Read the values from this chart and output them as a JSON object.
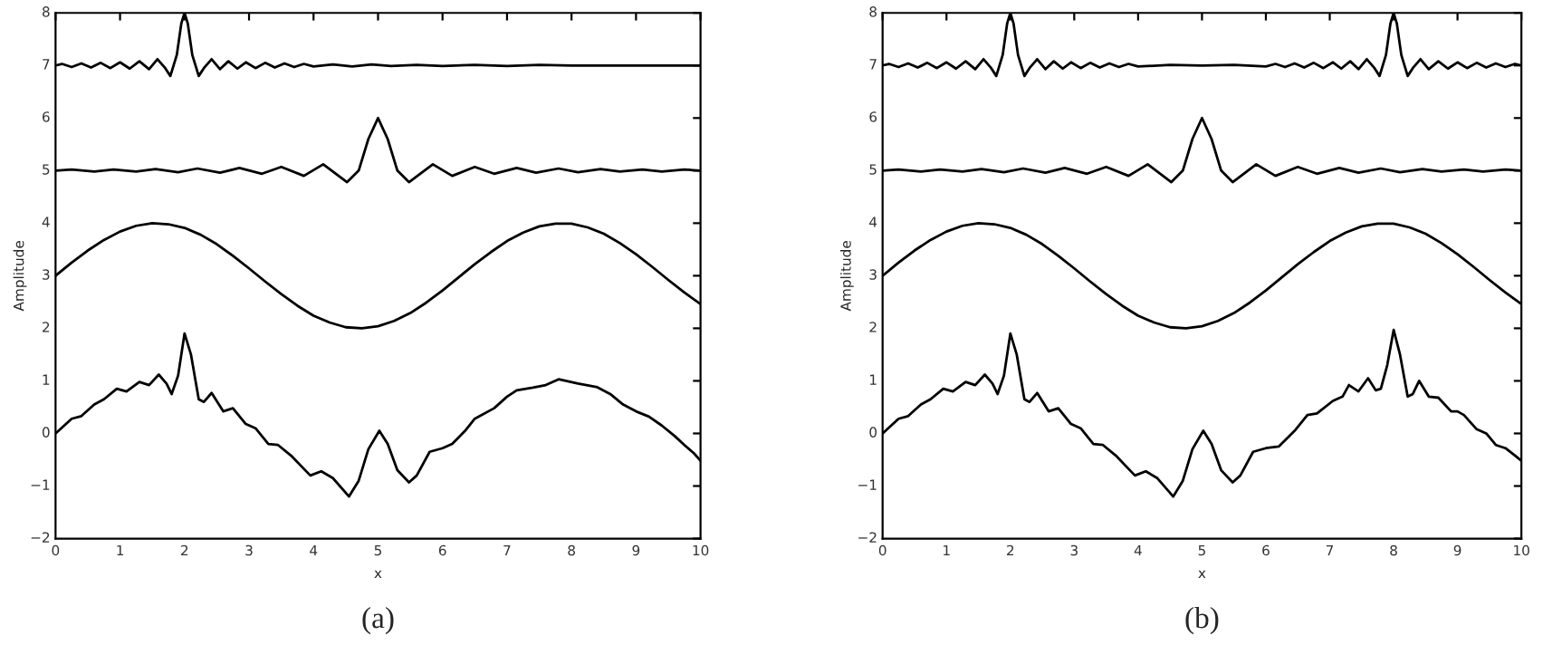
{
  "chart_data": [
    {
      "type": "line",
      "xlabel": "x",
      "ylabel": "Amplitude",
      "annotations": [
        "(a)"
      ],
      "xlim": [
        0,
        10
      ],
      "ylim": [
        -2,
        8
      ],
      "xticks": [
        0,
        1,
        2,
        3,
        4,
        5,
        6,
        7,
        8,
        9,
        10
      ],
      "yticks": [
        -2,
        -1,
        0,
        1,
        2,
        3,
        4,
        5,
        6,
        7,
        8
      ],
      "grid": false,
      "legend": false,
      "series": [
        {
          "color": "#000000",
          "x": [
            0,
            0.1,
            0.25,
            0.4,
            0.55,
            0.7,
            0.85,
            1.0,
            1.15,
            1.3,
            1.45,
            1.58,
            1.7,
            1.78,
            1.88,
            1.95,
            2.0,
            2.05,
            2.12,
            2.22,
            2.3,
            2.42,
            2.55,
            2.68,
            2.82,
            2.95,
            3.1,
            3.25,
            3.4,
            3.55,
            3.7,
            3.85,
            4.0,
            4.3,
            4.6,
            4.9,
            5.2,
            5.6,
            6.0,
            6.5,
            7.0,
            7.5,
            8.0,
            8.5,
            9.0,
            9.5,
            10
          ],
          "values": [
            7.0,
            7.03,
            6.97,
            7.04,
            6.96,
            7.05,
            6.95,
            7.06,
            6.94,
            7.08,
            6.93,
            7.12,
            6.95,
            6.8,
            7.2,
            7.8,
            8.0,
            7.8,
            7.2,
            6.8,
            6.95,
            7.12,
            6.93,
            7.08,
            6.94,
            7.06,
            6.95,
            7.05,
            6.96,
            7.04,
            6.97,
            7.03,
            6.98,
            7.02,
            6.98,
            7.02,
            6.99,
            7.01,
            6.99,
            7.01,
            6.99,
            7.01,
            7.0,
            7.0,
            7.0,
            7.0,
            7.0
          ]
        },
        {
          "color": "#000000",
          "x": [
            0,
            0.25,
            0.6,
            0.9,
            1.25,
            1.55,
            1.9,
            2.2,
            2.55,
            2.85,
            3.2,
            3.5,
            3.85,
            4.15,
            4.52,
            4.7,
            4.85,
            5.0,
            5.15,
            5.3,
            5.48,
            5.85,
            6.15,
            6.5,
            6.8,
            7.15,
            7.45,
            7.8,
            8.1,
            8.45,
            8.75,
            9.1,
            9.4,
            9.75,
            10
          ],
          "values": [
            5.0,
            5.02,
            4.98,
            5.02,
            4.98,
            5.03,
            4.97,
            5.04,
            4.96,
            5.05,
            4.94,
            5.07,
            4.9,
            5.12,
            4.78,
            5.0,
            5.6,
            6.0,
            5.6,
            5.0,
            4.78,
            5.12,
            4.9,
            5.07,
            4.94,
            5.05,
            4.96,
            5.04,
            4.97,
            5.03,
            4.98,
            5.02,
            4.98,
            5.02,
            5.0
          ]
        },
        {
          "color": "#000000",
          "x": [
            0,
            0.25,
            0.5,
            0.75,
            1,
            1.25,
            1.5,
            1.75,
            2,
            2.25,
            2.5,
            2.75,
            3,
            3.25,
            3.5,
            3.75,
            4,
            4.25,
            4.5,
            4.75,
            5,
            5.25,
            5.5,
            5.75,
            6,
            6.25,
            6.5,
            6.75,
            7,
            7.25,
            7.5,
            7.75,
            8,
            8.25,
            8.5,
            8.75,
            9,
            9.25,
            9.5,
            9.75,
            10
          ],
          "values": [
            3.0,
            3.25,
            3.48,
            3.68,
            3.84,
            3.95,
            4.0,
            3.98,
            3.91,
            3.78,
            3.6,
            3.38,
            3.14,
            2.89,
            2.65,
            2.43,
            2.24,
            2.11,
            2.02,
            2.0,
            2.04,
            2.14,
            2.29,
            2.49,
            2.72,
            2.97,
            3.22,
            3.45,
            3.66,
            3.82,
            3.94,
            3.99,
            3.99,
            3.92,
            3.8,
            3.62,
            3.41,
            3.17,
            2.92,
            2.68,
            2.46
          ]
        },
        {
          "color": "#000000",
          "x": [
            0,
            0.25,
            0.4,
            0.6,
            0.75,
            0.95,
            1.1,
            1.3,
            1.45,
            1.6,
            1.72,
            1.8,
            1.9,
            2.0,
            2.1,
            2.22,
            2.3,
            2.42,
            2.6,
            2.75,
            2.95,
            3.1,
            3.3,
            3.45,
            3.65,
            3.95,
            4.12,
            4.3,
            4.55,
            4.7,
            4.85,
            5.02,
            5.15,
            5.3,
            5.48,
            5.6,
            5.8,
            6.0,
            6.15,
            6.35,
            6.5,
            6.8,
            7.0,
            7.15,
            7.4,
            7.6,
            7.8,
            8.1,
            8.4,
            8.6,
            8.8,
            9.0,
            9.2,
            9.4,
            9.6,
            9.75,
            9.9,
            10
          ],
          "values": [
            0,
            0.28,
            0.33,
            0.55,
            0.65,
            0.85,
            0.8,
            0.98,
            0.92,
            1.12,
            0.95,
            0.75,
            1.1,
            1.9,
            1.5,
            0.65,
            0.6,
            0.77,
            0.42,
            0.48,
            0.18,
            0.1,
            -0.2,
            -0.22,
            -0.42,
            -0.8,
            -0.72,
            -0.85,
            -1.2,
            -0.9,
            -0.3,
            0.05,
            -0.2,
            -0.7,
            -0.93,
            -0.8,
            -0.35,
            -0.28,
            -0.2,
            0.05,
            0.28,
            0.48,
            0.7,
            0.82,
            0.87,
            0.92,
            1.03,
            0.95,
            0.88,
            0.75,
            0.55,
            0.42,
            0.32,
            0.15,
            -0.05,
            -0.22,
            -0.38,
            -0.52
          ]
        }
      ]
    },
    {
      "type": "line",
      "xlabel": "x",
      "ylabel": "Amplitude",
      "annotations": [
        "(b)"
      ],
      "xlim": [
        0,
        10
      ],
      "ylim": [
        -2,
        8
      ],
      "xticks": [
        0,
        1,
        2,
        3,
        4,
        5,
        6,
        7,
        8,
        9,
        10
      ],
      "yticks": [
        -2,
        -1,
        0,
        1,
        2,
        3,
        4,
        5,
        6,
        7,
        8
      ],
      "grid": false,
      "legend": false,
      "series": [
        {
          "color": "#000000",
          "x": [
            0,
            0.1,
            0.25,
            0.4,
            0.55,
            0.7,
            0.85,
            1.0,
            1.15,
            1.3,
            1.45,
            1.58,
            1.7,
            1.78,
            1.88,
            1.95,
            2.0,
            2.05,
            2.12,
            2.22,
            2.3,
            2.42,
            2.55,
            2.68,
            2.82,
            2.95,
            3.1,
            3.25,
            3.4,
            3.55,
            3.7,
            3.85,
            4.0,
            4.5,
            5.0,
            5.5,
            6.0,
            6.15,
            6.3,
            6.45,
            6.6,
            6.75,
            6.9,
            7.05,
            7.18,
            7.32,
            7.45,
            7.58,
            7.7,
            7.78,
            7.88,
            7.95,
            8.0,
            8.05,
            8.12,
            8.22,
            8.3,
            8.42,
            8.55,
            8.7,
            8.85,
            9.0,
            9.15,
            9.3,
            9.45,
            9.6,
            9.75,
            9.9,
            10
          ],
          "values": [
            7.0,
            7.03,
            6.97,
            7.04,
            6.96,
            7.05,
            6.95,
            7.06,
            6.94,
            7.08,
            6.93,
            7.12,
            6.95,
            6.8,
            7.2,
            7.8,
            8.0,
            7.8,
            7.2,
            6.8,
            6.95,
            7.12,
            6.93,
            7.08,
            6.94,
            7.06,
            6.95,
            7.05,
            6.96,
            7.04,
            6.97,
            7.03,
            6.98,
            7.01,
            7.0,
            7.01,
            6.98,
            7.03,
            6.97,
            7.04,
            6.96,
            7.05,
            6.95,
            7.06,
            6.94,
            7.08,
            6.93,
            7.12,
            6.95,
            6.8,
            7.2,
            7.8,
            8.0,
            7.8,
            7.2,
            6.8,
            6.95,
            7.12,
            6.93,
            7.08,
            6.94,
            7.06,
            6.95,
            7.05,
            6.96,
            7.04,
            6.97,
            7.03,
            7.0
          ]
        },
        {
          "color": "#000000",
          "x": [
            0,
            0.25,
            0.6,
            0.9,
            1.25,
            1.55,
            1.9,
            2.2,
            2.55,
            2.85,
            3.2,
            3.5,
            3.85,
            4.15,
            4.52,
            4.7,
            4.85,
            5.0,
            5.15,
            5.3,
            5.48,
            5.85,
            6.15,
            6.5,
            6.8,
            7.15,
            7.45,
            7.8,
            8.1,
            8.45,
            8.75,
            9.1,
            9.4,
            9.75,
            10
          ],
          "values": [
            5.0,
            5.02,
            4.98,
            5.02,
            4.98,
            5.03,
            4.97,
            5.04,
            4.96,
            5.05,
            4.94,
            5.07,
            4.9,
            5.12,
            4.78,
            5.0,
            5.6,
            6.0,
            5.6,
            5.0,
            4.78,
            5.12,
            4.9,
            5.07,
            4.94,
            5.05,
            4.96,
            5.04,
            4.97,
            5.03,
            4.98,
            5.02,
            4.98,
            5.02,
            5.0
          ]
        },
        {
          "color": "#000000",
          "x": [
            0,
            0.25,
            0.5,
            0.75,
            1,
            1.25,
            1.5,
            1.75,
            2,
            2.25,
            2.5,
            2.75,
            3,
            3.25,
            3.5,
            3.75,
            4,
            4.25,
            4.5,
            4.75,
            5,
            5.25,
            5.5,
            5.75,
            6,
            6.25,
            6.5,
            6.75,
            7,
            7.25,
            7.5,
            7.75,
            8,
            8.25,
            8.5,
            8.75,
            9,
            9.25,
            9.5,
            9.75,
            10
          ],
          "values": [
            3.0,
            3.25,
            3.48,
            3.68,
            3.84,
            3.95,
            4.0,
            3.98,
            3.91,
            3.78,
            3.6,
            3.38,
            3.14,
            2.89,
            2.65,
            2.43,
            2.24,
            2.11,
            2.02,
            2.0,
            2.04,
            2.14,
            2.29,
            2.49,
            2.72,
            2.97,
            3.22,
            3.45,
            3.66,
            3.82,
            3.94,
            3.99,
            3.99,
            3.92,
            3.8,
            3.62,
            3.41,
            3.17,
            2.92,
            2.68,
            2.46
          ]
        },
        {
          "color": "#000000",
          "x": [
            0,
            0.25,
            0.4,
            0.6,
            0.75,
            0.95,
            1.1,
            1.3,
            1.45,
            1.6,
            1.72,
            1.8,
            1.9,
            2.0,
            2.1,
            2.22,
            2.3,
            2.42,
            2.6,
            2.75,
            2.95,
            3.1,
            3.3,
            3.45,
            3.65,
            3.95,
            4.12,
            4.3,
            4.55,
            4.7,
            4.85,
            5.02,
            5.15,
            5.3,
            5.48,
            5.6,
            5.8,
            6.0,
            6.2,
            6.45,
            6.65,
            6.8,
            7.05,
            7.2,
            7.3,
            7.45,
            7.6,
            7.72,
            7.8,
            7.9,
            8.0,
            8.1,
            8.22,
            8.3,
            8.4,
            8.55,
            8.7,
            8.9,
            9.0,
            9.1,
            9.3,
            9.45,
            9.6,
            9.75,
            9.9,
            10
          ],
          "values": [
            0,
            0.28,
            0.33,
            0.55,
            0.65,
            0.85,
            0.8,
            0.98,
            0.92,
            1.12,
            0.95,
            0.75,
            1.1,
            1.9,
            1.5,
            0.65,
            0.6,
            0.77,
            0.42,
            0.48,
            0.18,
            0.1,
            -0.2,
            -0.22,
            -0.42,
            -0.8,
            -0.72,
            -0.85,
            -1.2,
            -0.9,
            -0.3,
            0.05,
            -0.2,
            -0.7,
            -0.93,
            -0.8,
            -0.35,
            -0.28,
            -0.25,
            0.05,
            0.35,
            0.38,
            0.62,
            0.7,
            0.92,
            0.8,
            1.05,
            0.82,
            0.85,
            1.3,
            1.97,
            1.5,
            0.7,
            0.75,
            1.0,
            0.7,
            0.68,
            0.42,
            0.42,
            0.35,
            0.08,
            0.0,
            -0.22,
            -0.28,
            -0.42,
            -0.52
          ]
        }
      ]
    }
  ]
}
